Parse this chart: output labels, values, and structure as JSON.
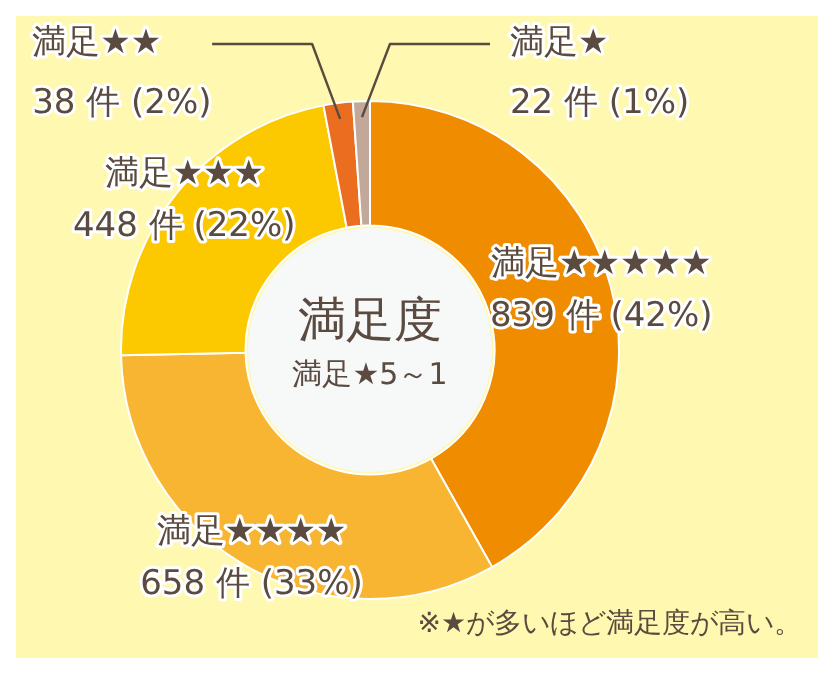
{
  "chart_data": {
    "type": "donut",
    "title": "満足度",
    "subtitle": "満足★5～1",
    "categories": [
      "満足★★★★★",
      "満足★★★★",
      "満足★★★",
      "満足★★",
      "満足★"
    ],
    "values": [
      839,
      658,
      448,
      38,
      22
    ],
    "colors": [
      "#f08c00",
      "#f8b532",
      "#fcc800",
      "#ea6d20",
      "#c2a898"
    ],
    "value_labels": [
      "839 件 (42%)",
      "658 件 (33%)",
      "448 件 (22%)",
      "38 件 (2%)",
      "22 件 (1%)"
    ],
    "annotations": [
      "※★が多いほど満足度が高い。"
    ]
  }
}
